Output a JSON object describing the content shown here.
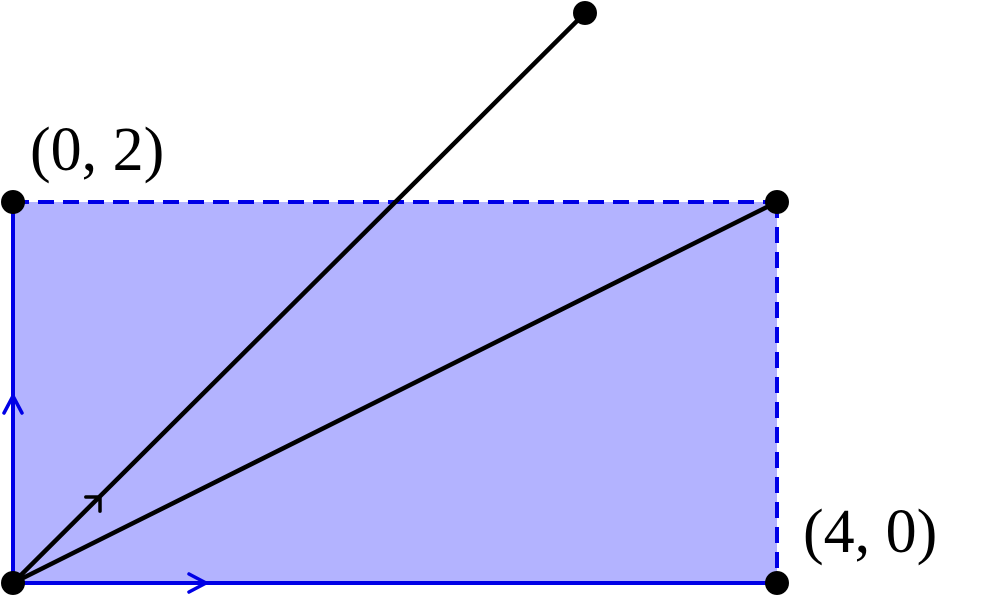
{
  "labels": [
    "(0, 2)",
    "(4, 0)"
  ]
}
